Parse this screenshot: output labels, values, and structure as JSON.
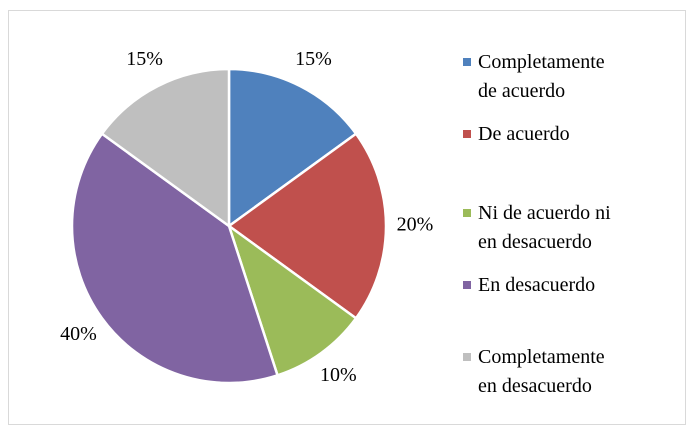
{
  "chart_data": {
    "type": "pie",
    "categories": [
      "Completamente de acuerdo",
      "De acuerdo",
      "Ni de acuerdo ni en desacuerdo",
      "En desacuerdo",
      "Completamente en desacuerdo"
    ],
    "values": [
      15,
      20,
      10,
      40,
      15
    ],
    "value_labels": [
      "15%",
      "20%",
      "10%",
      "40%",
      "15%"
    ],
    "colors": [
      "#4f81bd",
      "#c0504d",
      "#9bbb59",
      "#8064a2",
      "#bfbfbf"
    ],
    "legend": "right"
  }
}
